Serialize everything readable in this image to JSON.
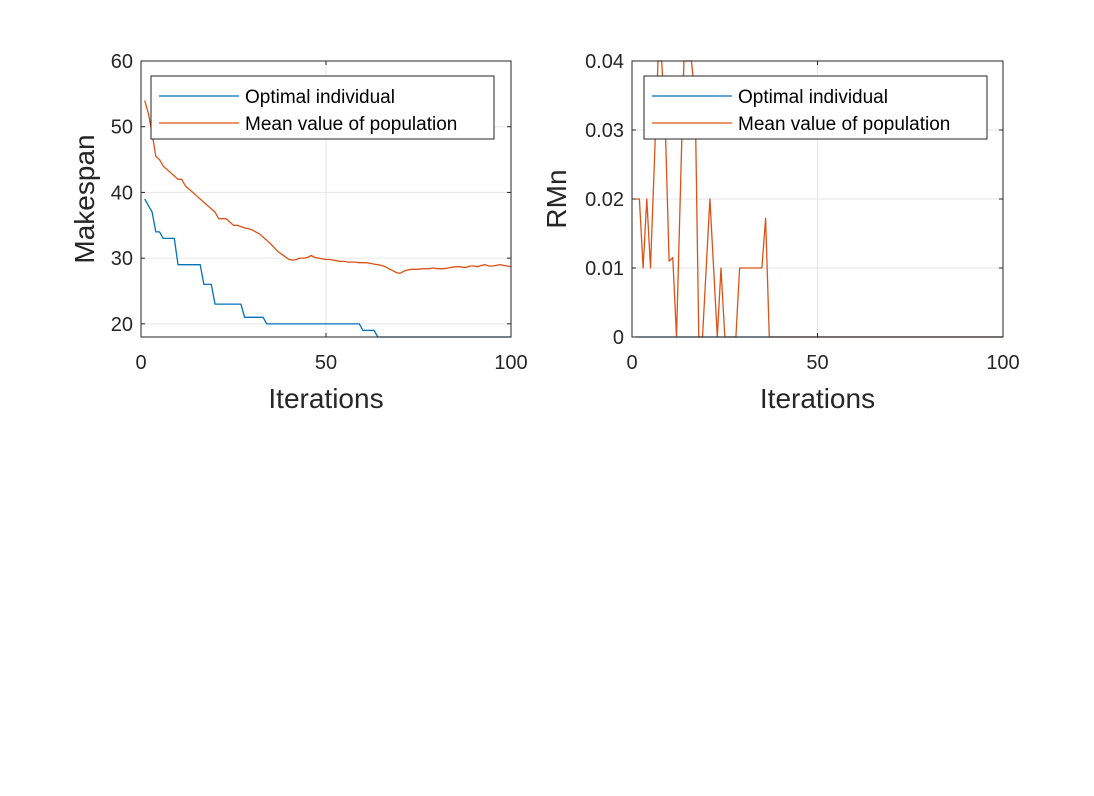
{
  "colors": {
    "series1": "#0072BD",
    "series2": "#D95319",
    "axis": "#262626",
    "grid": "#e6e6e6"
  },
  "chart_data": [
    {
      "type": "line",
      "xlabel": "Iterations",
      "ylabel": "Makespan",
      "xlim": [
        0,
        100
      ],
      "ylim": [
        18,
        60
      ],
      "xticks": [
        0,
        50,
        100
      ],
      "yticks": [
        20,
        30,
        40,
        50,
        60
      ],
      "xtick_labels": [
        "0",
        "50",
        "100"
      ],
      "ytick_labels": [
        "20",
        "30",
        "40",
        "50",
        "60"
      ],
      "grid": true,
      "legend_position": "top-right",
      "series": [
        {
          "name": "Optimal individual",
          "x": [
            1,
            2,
            3,
            4,
            5,
            6,
            7,
            8,
            9,
            10,
            11,
            12,
            13,
            14,
            15,
            16,
            17,
            18,
            19,
            20,
            21,
            22,
            23,
            24,
            25,
            26,
            27,
            28,
            29,
            30,
            31,
            32,
            33,
            34,
            35,
            36,
            37,
            38,
            39,
            40,
            41,
            42,
            43,
            44,
            45,
            46,
            47,
            48,
            49,
            50,
            51,
            52,
            53,
            54,
            55,
            56,
            57,
            58,
            59,
            60,
            61,
            62,
            63,
            64,
            65,
            66,
            67,
            68,
            69,
            70,
            71,
            72,
            73,
            74,
            75,
            76,
            77,
            78,
            79,
            80,
            81,
            82,
            83,
            84,
            85,
            86,
            87,
            88,
            89,
            90,
            91,
            92,
            93,
            94,
            95,
            96,
            97,
            98,
            99,
            100
          ],
          "y": [
            39,
            38,
            37,
            34,
            34,
            33,
            33,
            33,
            33,
            29,
            29,
            29,
            29,
            29,
            29,
            29,
            26,
            26,
            26,
            23,
            23,
            23,
            23,
            23,
            23,
            23,
            23,
            21,
            21,
            21,
            21,
            21,
            21,
            20,
            20,
            20,
            20,
            20,
            20,
            20,
            20,
            20,
            20,
            20,
            20,
            20,
            20,
            20,
            20,
            20,
            20,
            20,
            20,
            20,
            20,
            20,
            20,
            20,
            20,
            19,
            19,
            19,
            19,
            18,
            18,
            18,
            18,
            18,
            18,
            18,
            18,
            18,
            18,
            18,
            18,
            18,
            18,
            18,
            18,
            18,
            18,
            18,
            18,
            18,
            18,
            18,
            18,
            18,
            18,
            18,
            18,
            18,
            18,
            18,
            18,
            18,
            18,
            18,
            18,
            18
          ]
        },
        {
          "name": "Mean value of population",
          "x": [
            1,
            2,
            3,
            4,
            5,
            6,
            7,
            8,
            9,
            10,
            11,
            12,
            13,
            14,
            15,
            16,
            17,
            18,
            19,
            20,
            21,
            22,
            23,
            24,
            25,
            26,
            27,
            28,
            29,
            30,
            31,
            32,
            33,
            34,
            35,
            36,
            37,
            38,
            39,
            40,
            41,
            42,
            43,
            44,
            45,
            46,
            47,
            48,
            49,
            50,
            51,
            52,
            53,
            54,
            55,
            56,
            57,
            58,
            59,
            60,
            61,
            62,
            63,
            64,
            65,
            66,
            67,
            68,
            69,
            70,
            71,
            72,
            73,
            74,
            75,
            76,
            77,
            78,
            79,
            80,
            81,
            82,
            83,
            84,
            85,
            86,
            87,
            88,
            89,
            90,
            91,
            92,
            93,
            94,
            95,
            96,
            97,
            98,
            99,
            100
          ],
          "y": [
            54,
            52,
            49,
            45.5,
            45,
            44,
            43.5,
            43,
            42.5,
            42,
            42,
            41,
            40.5,
            40,
            39.5,
            39,
            38.5,
            38,
            37.5,
            37,
            36,
            36,
            36,
            35.5,
            35,
            35,
            34.8,
            34.6,
            34.5,
            34.3,
            34,
            33.7,
            33.2,
            32.7,
            32.2,
            31.6,
            31,
            30.6,
            30.2,
            29.8,
            29.7,
            29.8,
            30,
            30,
            30.1,
            30.4,
            30.1,
            30,
            29.9,
            29.8,
            29.8,
            29.7,
            29.6,
            29.5,
            29.5,
            29.4,
            29.4,
            29.4,
            29.3,
            29.3,
            29.3,
            29.2,
            29.1,
            29,
            28.9,
            28.7,
            28.4,
            28.1,
            27.8,
            27.7,
            28,
            28.2,
            28.3,
            28.3,
            28.3,
            28.4,
            28.4,
            28.4,
            28.5,
            28.4,
            28.4,
            28.4,
            28.5,
            28.6,
            28.7,
            28.7,
            28.6,
            28.6,
            28.8,
            28.8,
            28.7,
            28.9,
            29,
            28.8,
            28.8,
            28.9,
            29,
            28.9,
            28.8,
            28.7
          ]
        }
      ]
    },
    {
      "type": "line",
      "xlabel": "Iterations",
      "ylabel": "RMn",
      "xlim": [
        0,
        100
      ],
      "ylim": [
        0,
        0.04
      ],
      "xticks": [
        0,
        50,
        100
      ],
      "yticks": [
        0,
        0.01,
        0.02,
        0.03,
        0.04
      ],
      "xtick_labels": [
        "0",
        "50",
        "100"
      ],
      "ytick_labels": [
        "0",
        "0.01",
        "0.02",
        "0.03",
        "0.04"
      ],
      "grid": true,
      "legend_position": "top-right",
      "series": [
        {
          "name": "Optimal individual",
          "x": [
            1,
            100
          ],
          "y": [
            0,
            0
          ]
        },
        {
          "name": "Mean value of population",
          "x": [
            1,
            2,
            3,
            4,
            5,
            6,
            7,
            8,
            9,
            10,
            11,
            12,
            13,
            14,
            15,
            16,
            17,
            18,
            19,
            20,
            21,
            22,
            23,
            24,
            25,
            26,
            27,
            28,
            29,
            30,
            31,
            32,
            33,
            34,
            35,
            36,
            37,
            38,
            100
          ],
          "y": [
            0.02,
            0.02,
            0.01,
            0.02,
            0.01,
            0.025,
            0.04,
            0.04,
            0.03,
            0.011,
            0.0115,
            0,
            0.02,
            0.04,
            0.04,
            0.04,
            0.035,
            0,
            0,
            0.01,
            0.02,
            0.01,
            0,
            0.01,
            0,
            0,
            0,
            0,
            0.01,
            0.01,
            0.01,
            0.01,
            0.01,
            0.01,
            0.01,
            0.0172,
            0,
            0,
            0
          ]
        }
      ]
    }
  ]
}
